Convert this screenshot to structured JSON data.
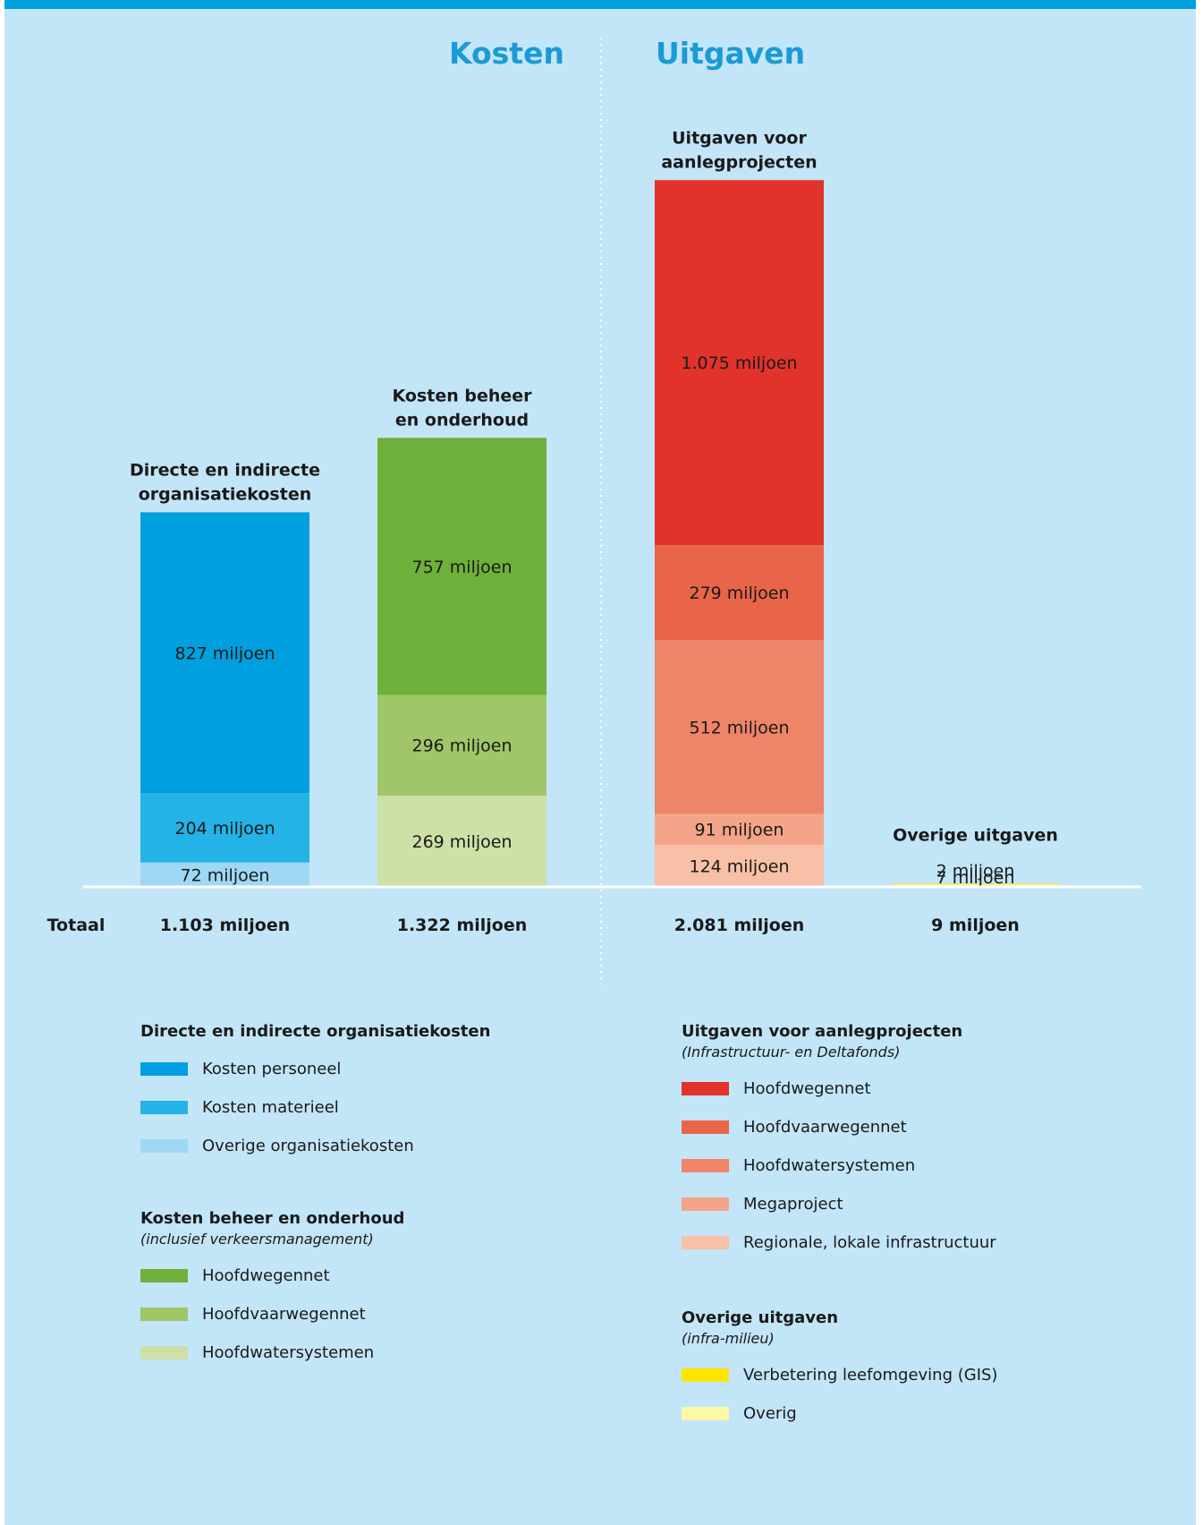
{
  "headings": {
    "left": "Kosten",
    "right": "Uitgaven"
  },
  "chart_data": {
    "type": "bar",
    "stacked": true,
    "total_label": "Totaal",
    "unit": "miljoen",
    "categories": [
      "Directe en indirecte organisatiekosten",
      "Kosten beheer en onderhoud",
      "Uitgaven voor aanlegprojecten",
      "Overige uitgaven"
    ],
    "bars": [
      {
        "title_lines": [
          "Directe en indirecte",
          "organisatiekosten"
        ],
        "total": "1.103 miljoen",
        "segments": [
          {
            "value": 72,
            "label": "72 miljoen",
            "color": "#9ed8f4"
          },
          {
            "value": 204,
            "label": "204 miljoen",
            "color": "#24b3e6"
          },
          {
            "value": 827,
            "label": "827 miljoen",
            "color": "#009fdf"
          }
        ]
      },
      {
        "title_lines": [
          "Kosten beheer",
          "en onderhoud"
        ],
        "total": "1.322 miljoen",
        "segments": [
          {
            "value": 269,
            "label": "269 miljoen",
            "color": "#cde0a6"
          },
          {
            "value": 296,
            "label": "296 miljoen",
            "color": "#a0c668"
          },
          {
            "value": 757,
            "label": "757 miljoen",
            "color": "#6fb03a"
          }
        ]
      },
      {
        "title_lines": [
          "Uitgaven voor",
          "aanlegprojecten"
        ],
        "total": "2.081 miljoen",
        "segments": [
          {
            "value": 124,
            "label": "124 miljoen",
            "color": "#f8c0a6"
          },
          {
            "value": 91,
            "label": "91 miljoen",
            "color": "#f4a488"
          },
          {
            "value": 512,
            "label": "512 miljoen",
            "color": "#ee8468"
          },
          {
            "value": 279,
            "label": "279 miljoen",
            "color": "#e86549"
          },
          {
            "value": 1075,
            "label": "1.075 miljoen",
            "color": "#e1332b"
          }
        ]
      },
      {
        "title_lines": [
          "Overige uitgaven"
        ],
        "total": "9 miljoen",
        "segments": [
          {
            "value": 7,
            "label": "7 miljoen",
            "color": "#fff7a8"
          },
          {
            "value": 2,
            "label": "2 miljoen",
            "color": "#ffe600"
          }
        ]
      }
    ]
  },
  "legend": [
    {
      "title": "Directe en indirecte organisatiekosten",
      "subtitle": "",
      "items": [
        {
          "label": "Kosten personeel",
          "color": "#009fdf"
        },
        {
          "label": "Kosten materieel",
          "color": "#24b3e6"
        },
        {
          "label": "Overige organisatiekosten",
          "color": "#9ed8f4"
        }
      ]
    },
    {
      "title": "Kosten beheer en onderhoud",
      "subtitle": "(inclusief verkeersmanagement)",
      "items": [
        {
          "label": "Hoofdwegennet",
          "color": "#6fb03a"
        },
        {
          "label": "Hoofdvaarwegennet",
          "color": "#a0c668"
        },
        {
          "label": "Hoofdwatersystemen",
          "color": "#cde0a6"
        }
      ]
    },
    {
      "title": "Uitgaven voor aanlegprojecten",
      "subtitle": "(Infrastructuur- en Deltafonds)",
      "items": [
        {
          "label": "Hoofdwegennet",
          "color": "#e1332b"
        },
        {
          "label": "Hoofdvaarwegennet",
          "color": "#e86549"
        },
        {
          "label": "Hoofdwatersystemen",
          "color": "#ee8468"
        },
        {
          "label": "Megaproject",
          "color": "#f4a488"
        },
        {
          "label": "Regionale, lokale infrastructuur",
          "color": "#f8c0a6"
        }
      ]
    },
    {
      "title": "Overige uitgaven",
      "subtitle": "(infra-milieu)",
      "items": [
        {
          "label": "Verbetering leefomgeving (GIS)",
          "color": "#ffe600"
        },
        {
          "label": "Overig",
          "color": "#fff7a8"
        }
      ]
    }
  ]
}
